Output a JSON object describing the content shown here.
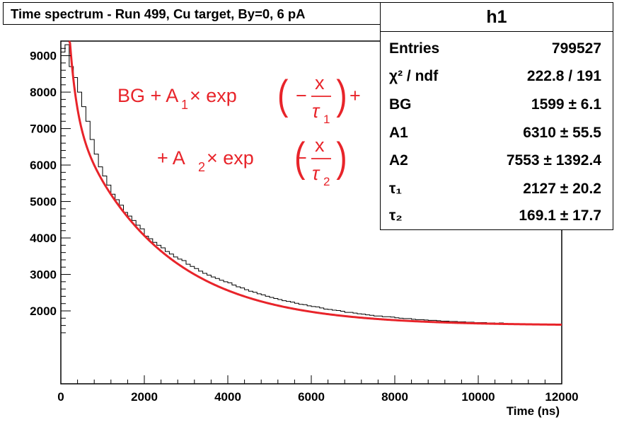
{
  "chart_data": {
    "type": "histogram",
    "title": "Time spectrum - Run 499, Cu target, By=0, 6 pA",
    "xlabel": "Time (ns)",
    "ylabel": "",
    "xlim": [
      0,
      12000
    ],
    "ylim": [
      0,
      9400
    ],
    "x_ticks": [
      "0",
      "2000",
      "4000",
      "6000",
      "8000",
      "10000",
      "12000"
    ],
    "y_ticks": [
      "2000",
      "3000",
      "4000",
      "5000",
      "6000",
      "7000",
      "8000",
      "9000"
    ],
    "x_tick_values": [
      0,
      2000,
      4000,
      6000,
      8000,
      10000,
      12000
    ],
    "y_tick_values": [
      2000,
      3000,
      4000,
      5000,
      6000,
      7000,
      8000,
      9000
    ],
    "series": [
      {
        "name": "h1",
        "style": "histogram",
        "bin_width": 100,
        "x_start": 0,
        "values": [
          9100,
          9300,
          8700,
          8400,
          8000,
          7600,
          7200,
          6700,
          6300,
          5950,
          5700,
          5450,
          5200,
          5050,
          4900,
          4700,
          4600,
          4480,
          4350,
          4250,
          4050,
          3980,
          3880,
          3800,
          3730,
          3630,
          3560,
          3480,
          3420,
          3380,
          3280,
          3220,
          3160,
          3090,
          3030,
          2980,
          2930,
          2890,
          2840,
          2800,
          2770,
          2710,
          2660,
          2630,
          2580,
          2540,
          2510,
          2470,
          2440,
          2400,
          2370,
          2340,
          2310,
          2280,
          2260,
          2240,
          2210,
          2180,
          2170,
          2140,
          2120,
          2110,
          2080,
          2050,
          2040,
          2020,
          2010,
          1990,
          1960,
          1960,
          1940,
          1920,
          1910,
          1890,
          1880,
          1860,
          1860,
          1840,
          1840,
          1830,
          1810,
          1800,
          1790,
          1790,
          1770,
          1760,
          1760,
          1750,
          1740,
          1740,
          1730,
          1720,
          1720,
          1710,
          1710,
          1700,
          1700,
          1690,
          1690,
          1680,
          1680,
          1680,
          1670,
          1670,
          1660,
          1670,
          1660,
          1650,
          1650,
          1650,
          1640,
          1640,
          1640,
          1630,
          1640,
          1630,
          1630,
          1630,
          1620,
          1640
        ]
      },
      {
        "name": "fit",
        "style": "line",
        "color": "#e8242a",
        "model": "BG + A1*exp(-x/tau1) + A2*exp(-x/tau2)",
        "x_range": [
          200,
          12000
        ],
        "params": {
          "BG": 1599,
          "A1": 6310,
          "A2": 7553,
          "tau1": 2127,
          "tau2": 169.1
        }
      }
    ],
    "formula": {
      "line1": [
        "BG + A",
        "1",
        " × exp",
        "(",
        "−",
        "x",
        "τ",
        "1",
        ")",
        " +"
      ],
      "line2": [
        "+ A",
        "2",
        " × exp",
        "(",
        "−",
        "x",
        "τ",
        "2",
        ")"
      ]
    },
    "stats_box": {
      "title": "h1",
      "rows": [
        {
          "label": "Entries",
          "value": "799527"
        },
        {
          "label": "χ² / ndf",
          "value": "222.8 / 191"
        },
        {
          "label": "BG",
          "value": "1599 ± 6.1"
        },
        {
          "label": "A1",
          "value": "6310 ± 55.5"
        },
        {
          "label": "A2",
          "value": "7553 ± 1392.4"
        },
        {
          "label": "τ₁",
          "value": "2127 ± 20.2"
        },
        {
          "label": "τ₂",
          "value": "169.1 ± 17.7"
        }
      ]
    },
    "colors": {
      "histogram": "#000000",
      "fit": "#e8242a",
      "axes": "#000000",
      "formula": "#e8242a"
    }
  }
}
